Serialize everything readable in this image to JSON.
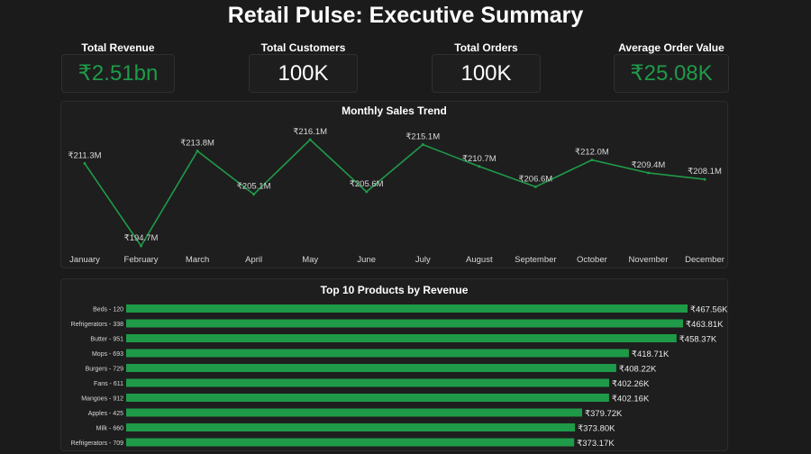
{
  "page": {
    "title": "Retail Pulse: Executive Summary"
  },
  "kpis": [
    {
      "label": "Total Revenue",
      "value": "₹2.51bn"
    },
    {
      "label": "Total Customers",
      "value": "100K"
    },
    {
      "label": "Total Orders",
      "value": "100K"
    },
    {
      "label": "Average Order Value",
      "value": "₹25.08K"
    }
  ],
  "colors": {
    "accent_green": "#1f9a48",
    "background": "#1b1b1c",
    "panel": "#1e1e1f"
  },
  "chart_data": [
    {
      "type": "line",
      "title": "Monthly Sales Trend",
      "categories": [
        "January",
        "February",
        "March",
        "April",
        "May",
        "June",
        "July",
        "August",
        "September",
        "October",
        "November",
        "December"
      ],
      "values": [
        211.3,
        194.7,
        213.8,
        205.1,
        216.1,
        205.6,
        215.1,
        210.7,
        206.6,
        212.0,
        209.4,
        208.1
      ],
      "data_labels": [
        "₹211.3M",
        "₹194.7M",
        "₹213.8M",
        "₹205.1M",
        "₹216.1M",
        "₹205.6M",
        "₹215.1M",
        "₹210.7M",
        "₹206.6M",
        "₹212.0M",
        "₹209.4M",
        "₹208.1M"
      ],
      "ylim": [
        194.7,
        216.1
      ],
      "grid": false,
      "color": "#1f9a48"
    },
    {
      "type": "bar",
      "orientation": "horizontal",
      "title": "Top 10 Products by Revenue",
      "categories": [
        "Beds - 120",
        "Refrigerators - 338",
        "Butter - 951",
        "Mops - 693",
        "Burgers - 729",
        "Fans - 611",
        "Mangoes - 912",
        "Apples - 425",
        "Milk - 660",
        "Refrigerators - 709"
      ],
      "values": [
        467.56,
        463.81,
        458.37,
        418.71,
        408.22,
        402.26,
        402.16,
        379.72,
        373.8,
        373.17
      ],
      "data_labels": [
        "₹467.56K",
        "₹463.81K",
        "₹458.37K",
        "₹418.71K",
        "₹408.22K",
        "₹402.26K",
        "₹402.16K",
        "₹379.72K",
        "₹373.80K",
        "₹373.17K"
      ],
      "grid": false,
      "color": "#1f9a48"
    }
  ]
}
